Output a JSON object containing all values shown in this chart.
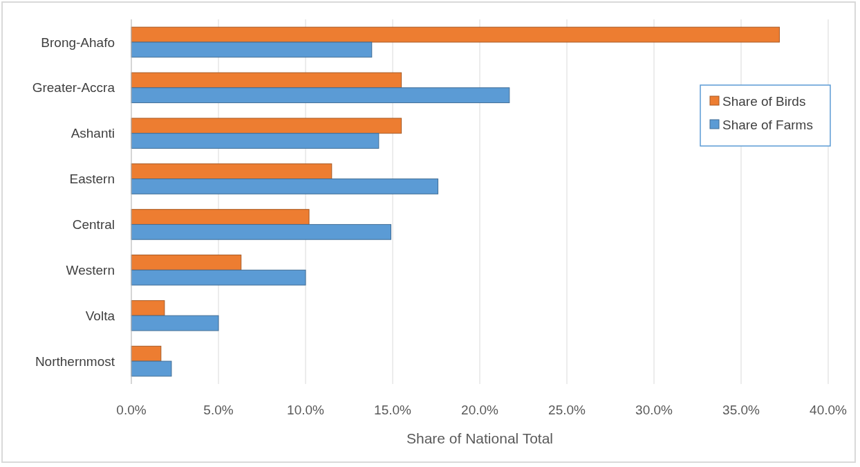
{
  "chart_data": {
    "type": "bar",
    "orientation": "horizontal",
    "xlabel": "Share of National Total",
    "categories": [
      "Brong-Ahafo",
      "Greater-Accra",
      "Ashanti",
      "Eastern",
      "Central",
      "Western",
      "Volta",
      "Northernmost"
    ],
    "series": [
      {
        "name": "Share of Birds",
        "color": "#ed7d31",
        "values": [
          37.2,
          15.5,
          15.5,
          11.5,
          10.2,
          6.3,
          1.9,
          1.7
        ]
      },
      {
        "name": "Share of Farms",
        "color": "#5b9bd5",
        "values": [
          13.8,
          21.7,
          14.2,
          17.6,
          14.9,
          10.0,
          5.0,
          2.3
        ]
      }
    ],
    "xlim": [
      0,
      40
    ],
    "xticks": [
      {
        "value": 0,
        "label": "0.0%"
      },
      {
        "value": 5,
        "label": "5.0%"
      },
      {
        "value": 10,
        "label": "10.0%"
      },
      {
        "value": 15,
        "label": "15.0%"
      },
      {
        "value": 20,
        "label": "20.0%"
      },
      {
        "value": 25,
        "label": "25.0%"
      },
      {
        "value": 30,
        "label": "30.0%"
      },
      {
        "value": 35,
        "label": "35.0%"
      },
      {
        "value": 40,
        "label": "40.0%"
      }
    ],
    "grid": "x",
    "legend": "top right"
  }
}
